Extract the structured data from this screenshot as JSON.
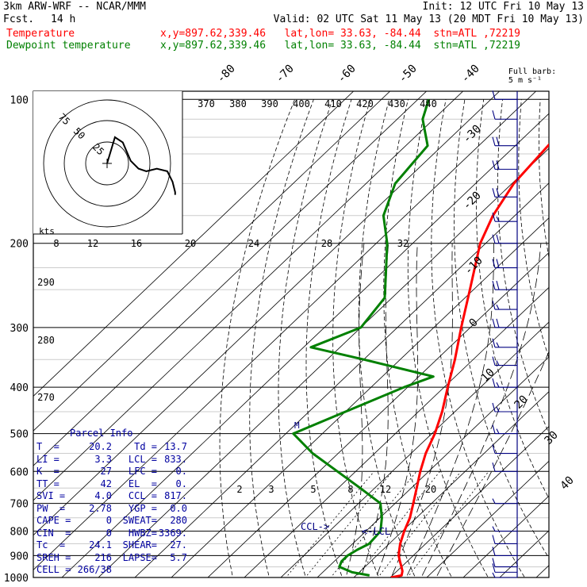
{
  "header": {
    "model": "3km ARW-WRF -- NCAR/MMM",
    "init": "Init: 12 UTC Fri 10 May 13",
    "fcst_label": "Fcst.",
    "fcst_value": "14 h",
    "valid": "Valid: 02 UTC Sat 11 May 13 (20 MDT Fri 10 May 13)",
    "temp_label": "Temperature",
    "temp_info": "x,y=897.62,339.46   lat,lon= 33.63, -84.44  stn=ATL ,72219",
    "dew_label": "Dewpoint temperature",
    "dew_info": "x,y=897.62,339.46   lat,lon= 33.63, -84.44  stn=ATL ,72219",
    "barb_note_1": "Full barb:",
    "barb_note_2": "5 m s⁻¹"
  },
  "colors": {
    "temperature": "#ff0000",
    "dewpoint": "#008000",
    "barbs": "#000080",
    "hodograph": "#000000"
  },
  "chart_data": {
    "type": "line",
    "title": "",
    "x_axis": "temperature (°C), skewed",
    "y_axis": "pressure (hPa), log scale",
    "pressure_labels": [
      "100",
      "200",
      "300",
      "400",
      "500",
      "600",
      "700",
      "800",
      "900",
      "1000"
    ],
    "isotherm_labels": [
      "-80",
      "-70",
      "-60",
      "-50",
      "-40",
      "-30",
      "-20",
      "-10",
      "0",
      "10",
      "20",
      "30",
      "40"
    ],
    "theta_labels": [
      "370",
      "380",
      "390",
      "400",
      "410",
      "420",
      "430",
      "440"
    ],
    "theta_side_labels": [
      "290",
      "280",
      "270"
    ],
    "hodo_speed_labels": [
      "8",
      "12",
      "16",
      "20",
      "24",
      "28",
      "32"
    ],
    "hodo_unit": "kts",
    "hodo_ring_labels": [
      "75",
      "50",
      "25"
    ],
    "mixing_labels": [
      "2",
      "3",
      "5",
      "8",
      "12",
      "20"
    ],
    "ccl_label": "CCL->",
    "lcl_label": "<-LCL",
    "m_label": "M",
    "series": [
      {
        "key": "temperature",
        "p": [
          1000,
          990,
          970,
          950,
          925,
          900,
          875,
          850,
          800,
          750,
          700,
          650,
          600,
          550,
          500,
          450,
          400,
          350,
          300,
          250,
          200,
          175,
          150,
          125,
          100
        ],
        "t": [
          20.2,
          22.5,
          21.5,
          20.0,
          18.0,
          16.0,
          14.5,
          13.0,
          10.5,
          8.2,
          5.0,
          1.5,
          -2.3,
          -6.0,
          -9.2,
          -13.5,
          -19.0,
          -25.0,
          -32.5,
          -41.0,
          -51.5,
          -56.0,
          -59.5,
          -61.0,
          -62.0
        ]
      },
      {
        "key": "dewpoint",
        "p": [
          990,
          975,
          950,
          925,
          900,
          875,
          850,
          800,
          750,
          700,
          650,
          600,
          550,
          500,
          450,
          400,
          380,
          350,
          330,
          300,
          260,
          230,
          200,
          175,
          150,
          125,
          110,
          100
        ],
        "t": [
          13.7,
          8.0,
          3.0,
          2.0,
          2.0,
          3.0,
          4.5,
          4.0,
          0.5,
          -4.0,
          -14.0,
          -25.0,
          -37.0,
          -48.0,
          -40.0,
          -31.0,
          -26.0,
          -50.0,
          -68.0,
          -60.0,
          -62.0,
          -69.0,
          -77.0,
          -86.0,
          -92.0,
          -94.0,
          -103.0,
          -107.0
        ]
      }
    ],
    "hodograph": {
      "u": [
        0,
        3,
        6,
        9,
        12,
        15,
        19,
        23,
        25,
        26,
        26
      ],
      "v": [
        0,
        10,
        8,
        1,
        -2,
        -3,
        -2,
        -3,
        -7,
        -11,
        -12
      ]
    }
  },
  "parcel": {
    "title": "Parcel Info",
    "rows": [
      [
        "T  =",
        "20.2",
        "Td =",
        "13.7"
      ],
      [
        "LI =",
        "3.3",
        "LCL =",
        "833."
      ],
      [
        "K  =",
        "27",
        "LFC =",
        "0."
      ],
      [
        "TT =",
        "42",
        "EL  =",
        "0."
      ],
      [
        "SVI =",
        "4.0",
        "CCL =",
        "817."
      ],
      [
        "PW  =",
        "2.78",
        "YGP =",
        "0.0"
      ],
      [
        "CAPE =",
        "0",
        "SWEAT=",
        "280"
      ],
      [
        "CIN  =",
        "0",
        "HWBZ=",
        "3369."
      ],
      [
        "Tc  =",
        "24.1",
        "SHEAR=",
        "27."
      ],
      [
        "SREH =",
        "216",
        "LAPSE=",
        "5.7"
      ],
      [
        "CELL =",
        "266/38",
        "",
        ""
      ]
    ]
  },
  "wind_barbs": [
    {
      "p": 100,
      "speed": 10,
      "dir": 270
    },
    {
      "p": 110,
      "speed": 10,
      "dir": 270
    },
    {
      "p": 125,
      "speed": 20,
      "dir": 270
    },
    {
      "p": 140,
      "speed": 20,
      "dir": 270
    },
    {
      "p": 160,
      "speed": 20,
      "dir": 270
    },
    {
      "p": 180,
      "speed": 15,
      "dir": 270
    },
    {
      "p": 200,
      "speed": 20,
      "dir": 270
    },
    {
      "p": 225,
      "speed": 20,
      "dir": 270
    },
    {
      "p": 250,
      "speed": 20,
      "dir": 270
    },
    {
      "p": 275,
      "speed": 15,
      "dir": 270
    },
    {
      "p": 300,
      "speed": 20,
      "dir": 270
    },
    {
      "p": 330,
      "speed": 15,
      "dir": 270
    },
    {
      "p": 360,
      "speed": 15,
      "dir": 270
    },
    {
      "p": 400,
      "speed": 15,
      "dir": 270
    },
    {
      "p": 450,
      "speed": 15,
      "dir": 270
    },
    {
      "p": 500,
      "speed": 15,
      "dir": 265
    },
    {
      "p": 550,
      "speed": 10,
      "dir": 265
    },
    {
      "p": 600,
      "speed": 10,
      "dir": 260
    },
    {
      "p": 700,
      "speed": 5,
      "dir": 250
    },
    {
      "p": 800,
      "speed": 5,
      "dir": 230
    },
    {
      "p": 850,
      "speed": 10,
      "dir": 220
    },
    {
      "p": 900,
      "speed": 10,
      "dir": 210
    },
    {
      "p": 950,
      "speed": 10,
      "dir": 200
    },
    {
      "p": 975,
      "speed": 10,
      "dir": 190
    },
    {
      "p": 1000,
      "speed": 5,
      "dir": 180
    }
  ]
}
